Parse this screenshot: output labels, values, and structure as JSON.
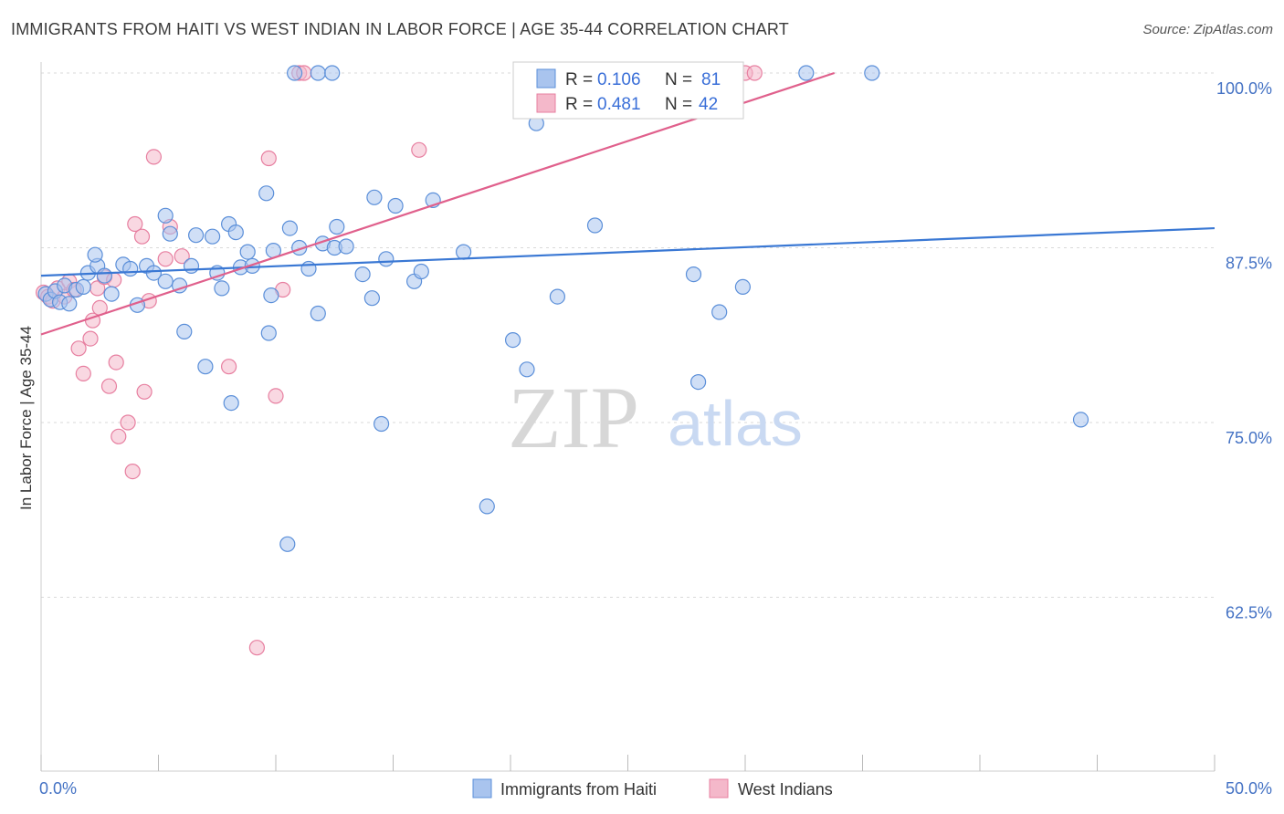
{
  "title": "IMMIGRANTS FROM HAITI VS WEST INDIAN IN LABOR FORCE | AGE 35-44 CORRELATION CHART",
  "source": "Source: ZipAtlas.com",
  "watermark": {
    "zip": "ZIP",
    "atlas": "atlas"
  },
  "colors": {
    "blue_fill": "#a9c4ee",
    "blue_stroke": "#5b8fd9",
    "blue_line": "#3a78d4",
    "pink_fill": "#f4b8ca",
    "pink_stroke": "#e77fa0",
    "pink_line": "#e0608c",
    "tick_text": "#4472c4",
    "grid": "#d9d9d9"
  },
  "legend": {
    "r_label": "R =",
    "n_label": "N =",
    "entries": [
      {
        "r": "0.106",
        "n": "81"
      },
      {
        "r": "0.481",
        "n": "42"
      }
    ]
  },
  "bottom_legend": [
    "Immigrants from Haiti",
    "West Indians"
  ],
  "chart_data": {
    "type": "scatter",
    "title": "IMMIGRANTS FROM HAITI VS WEST INDIAN IN LABOR FORCE | AGE 35-44 CORRELATION CHART",
    "xlabel": "",
    "ylabel": "In Labor Force | Age 35-44",
    "xlim": [
      0,
      50
    ],
    "ylim": [
      50,
      101
    ],
    "x_tick_labels": [
      "0.0%",
      "50.0%"
    ],
    "y_ticks": [
      62.5,
      75.0,
      87.5,
      100.0
    ],
    "y_tick_labels": [
      "62.5%",
      "75.0%",
      "87.5%",
      "100.0%"
    ],
    "grid": "horizontal dashed",
    "legend_position": "top-center",
    "series": [
      {
        "name": "Immigrants from Haiti",
        "r": 0.106,
        "n": 81,
        "trend": {
          "x": [
            0,
            50
          ],
          "y": [
            85.5,
            88.9
          ]
        },
        "points": [
          [
            0.2,
            84.2
          ],
          [
            0.4,
            83.8
          ],
          [
            0.6,
            84.4
          ],
          [
            0.8,
            83.6
          ],
          [
            1.0,
            84.8
          ],
          [
            1.2,
            83.5
          ],
          [
            1.5,
            84.5
          ],
          [
            1.8,
            84.7
          ],
          [
            2.0,
            85.7
          ],
          [
            2.4,
            86.2
          ],
          [
            2.7,
            85.5
          ],
          [
            3.0,
            84.2
          ],
          [
            2.3,
            87.0
          ],
          [
            3.5,
            86.3
          ],
          [
            3.8,
            86.0
          ],
          [
            4.1,
            83.4
          ],
          [
            4.5,
            86.2
          ],
          [
            4.8,
            85.7
          ],
          [
            5.3,
            85.1
          ],
          [
            5.9,
            84.8
          ],
          [
            5.5,
            88.5
          ],
          [
            6.6,
            88.4
          ],
          [
            6.4,
            86.2
          ],
          [
            7.3,
            88.3
          ],
          [
            7.5,
            85.7
          ],
          [
            7.7,
            84.6
          ],
          [
            8.0,
            89.2
          ],
          [
            8.3,
            88.6
          ],
          [
            8.5,
            86.1
          ],
          [
            9.0,
            86.2
          ],
          [
            8.8,
            87.2
          ],
          [
            9.9,
            87.3
          ],
          [
            10.6,
            88.9
          ],
          [
            11.0,
            87.5
          ],
          [
            11.4,
            86.0
          ],
          [
            11.8,
            82.8
          ],
          [
            12.0,
            87.8
          ],
          [
            12.5,
            87.5
          ],
          [
            12.6,
            89.0
          ],
          [
            13.0,
            87.6
          ],
          [
            13.7,
            85.6
          ],
          [
            14.1,
            83.9
          ],
          [
            14.7,
            86.7
          ],
          [
            15.9,
            85.1
          ],
          [
            16.2,
            85.8
          ],
          [
            18.0,
            87.2
          ],
          [
            9.6,
            91.4
          ],
          [
            14.2,
            91.1
          ],
          [
            15.1,
            90.5
          ],
          [
            16.7,
            90.9
          ],
          [
            5.3,
            89.8
          ],
          [
            6.1,
            81.5
          ],
          [
            7.0,
            79.0
          ],
          [
            8.1,
            76.4
          ],
          [
            9.7,
            81.4
          ],
          [
            9.8,
            84.1
          ],
          [
            10.5,
            66.3
          ],
          [
            14.5,
            74.9
          ],
          [
            19.0,
            69.0
          ],
          [
            20.1,
            80.9
          ],
          [
            20.7,
            78.8
          ],
          [
            21.1,
            96.4
          ],
          [
            22.0,
            84.0
          ],
          [
            23.6,
            89.1
          ],
          [
            27.8,
            85.6
          ],
          [
            28.0,
            77.9
          ],
          [
            28.9,
            82.9
          ],
          [
            29.9,
            84.7
          ],
          [
            44.3,
            75.2
          ],
          [
            10.8,
            100.0
          ],
          [
            11.8,
            100.0
          ],
          [
            12.4,
            100.0
          ],
          [
            26.2,
            100.0
          ],
          [
            32.6,
            100.0
          ],
          [
            35.4,
            100.0
          ]
        ]
      },
      {
        "name": "West Indians",
        "r": 0.481,
        "n": 42,
        "trend": {
          "x": [
            0,
            33.8
          ],
          "y": [
            81.3,
            100.0
          ]
        },
        "points": [
          [
            0.1,
            84.3
          ],
          [
            0.3,
            84.0
          ],
          [
            0.5,
            83.7
          ],
          [
            0.7,
            84.6
          ],
          [
            1.0,
            84.0
          ],
          [
            1.2,
            85.1
          ],
          [
            1.4,
            84.5
          ],
          [
            1.6,
            80.3
          ],
          [
            1.8,
            78.5
          ],
          [
            2.1,
            81.0
          ],
          [
            2.2,
            82.3
          ],
          [
            2.4,
            84.6
          ],
          [
            2.5,
            83.2
          ],
          [
            2.7,
            85.4
          ],
          [
            2.9,
            77.6
          ],
          [
            3.1,
            85.2
          ],
          [
            3.2,
            79.3
          ],
          [
            3.3,
            74.0
          ],
          [
            3.7,
            75.0
          ],
          [
            3.9,
            71.5
          ],
          [
            4.0,
            89.2
          ],
          [
            4.3,
            88.3
          ],
          [
            4.4,
            77.2
          ],
          [
            4.6,
            83.7
          ],
          [
            4.8,
            94.0
          ],
          [
            5.3,
            86.7
          ],
          [
            5.5,
            89.0
          ],
          [
            6.0,
            86.9
          ],
          [
            8.0,
            79.0
          ],
          [
            9.2,
            58.9
          ],
          [
            9.7,
            93.9
          ],
          [
            10.0,
            76.9
          ],
          [
            10.3,
            84.5
          ],
          [
            11.0,
            100.0
          ],
          [
            11.2,
            100.0
          ],
          [
            16.1,
            94.5
          ],
          [
            30.0,
            100.0
          ],
          [
            30.4,
            100.0
          ]
        ]
      }
    ]
  }
}
